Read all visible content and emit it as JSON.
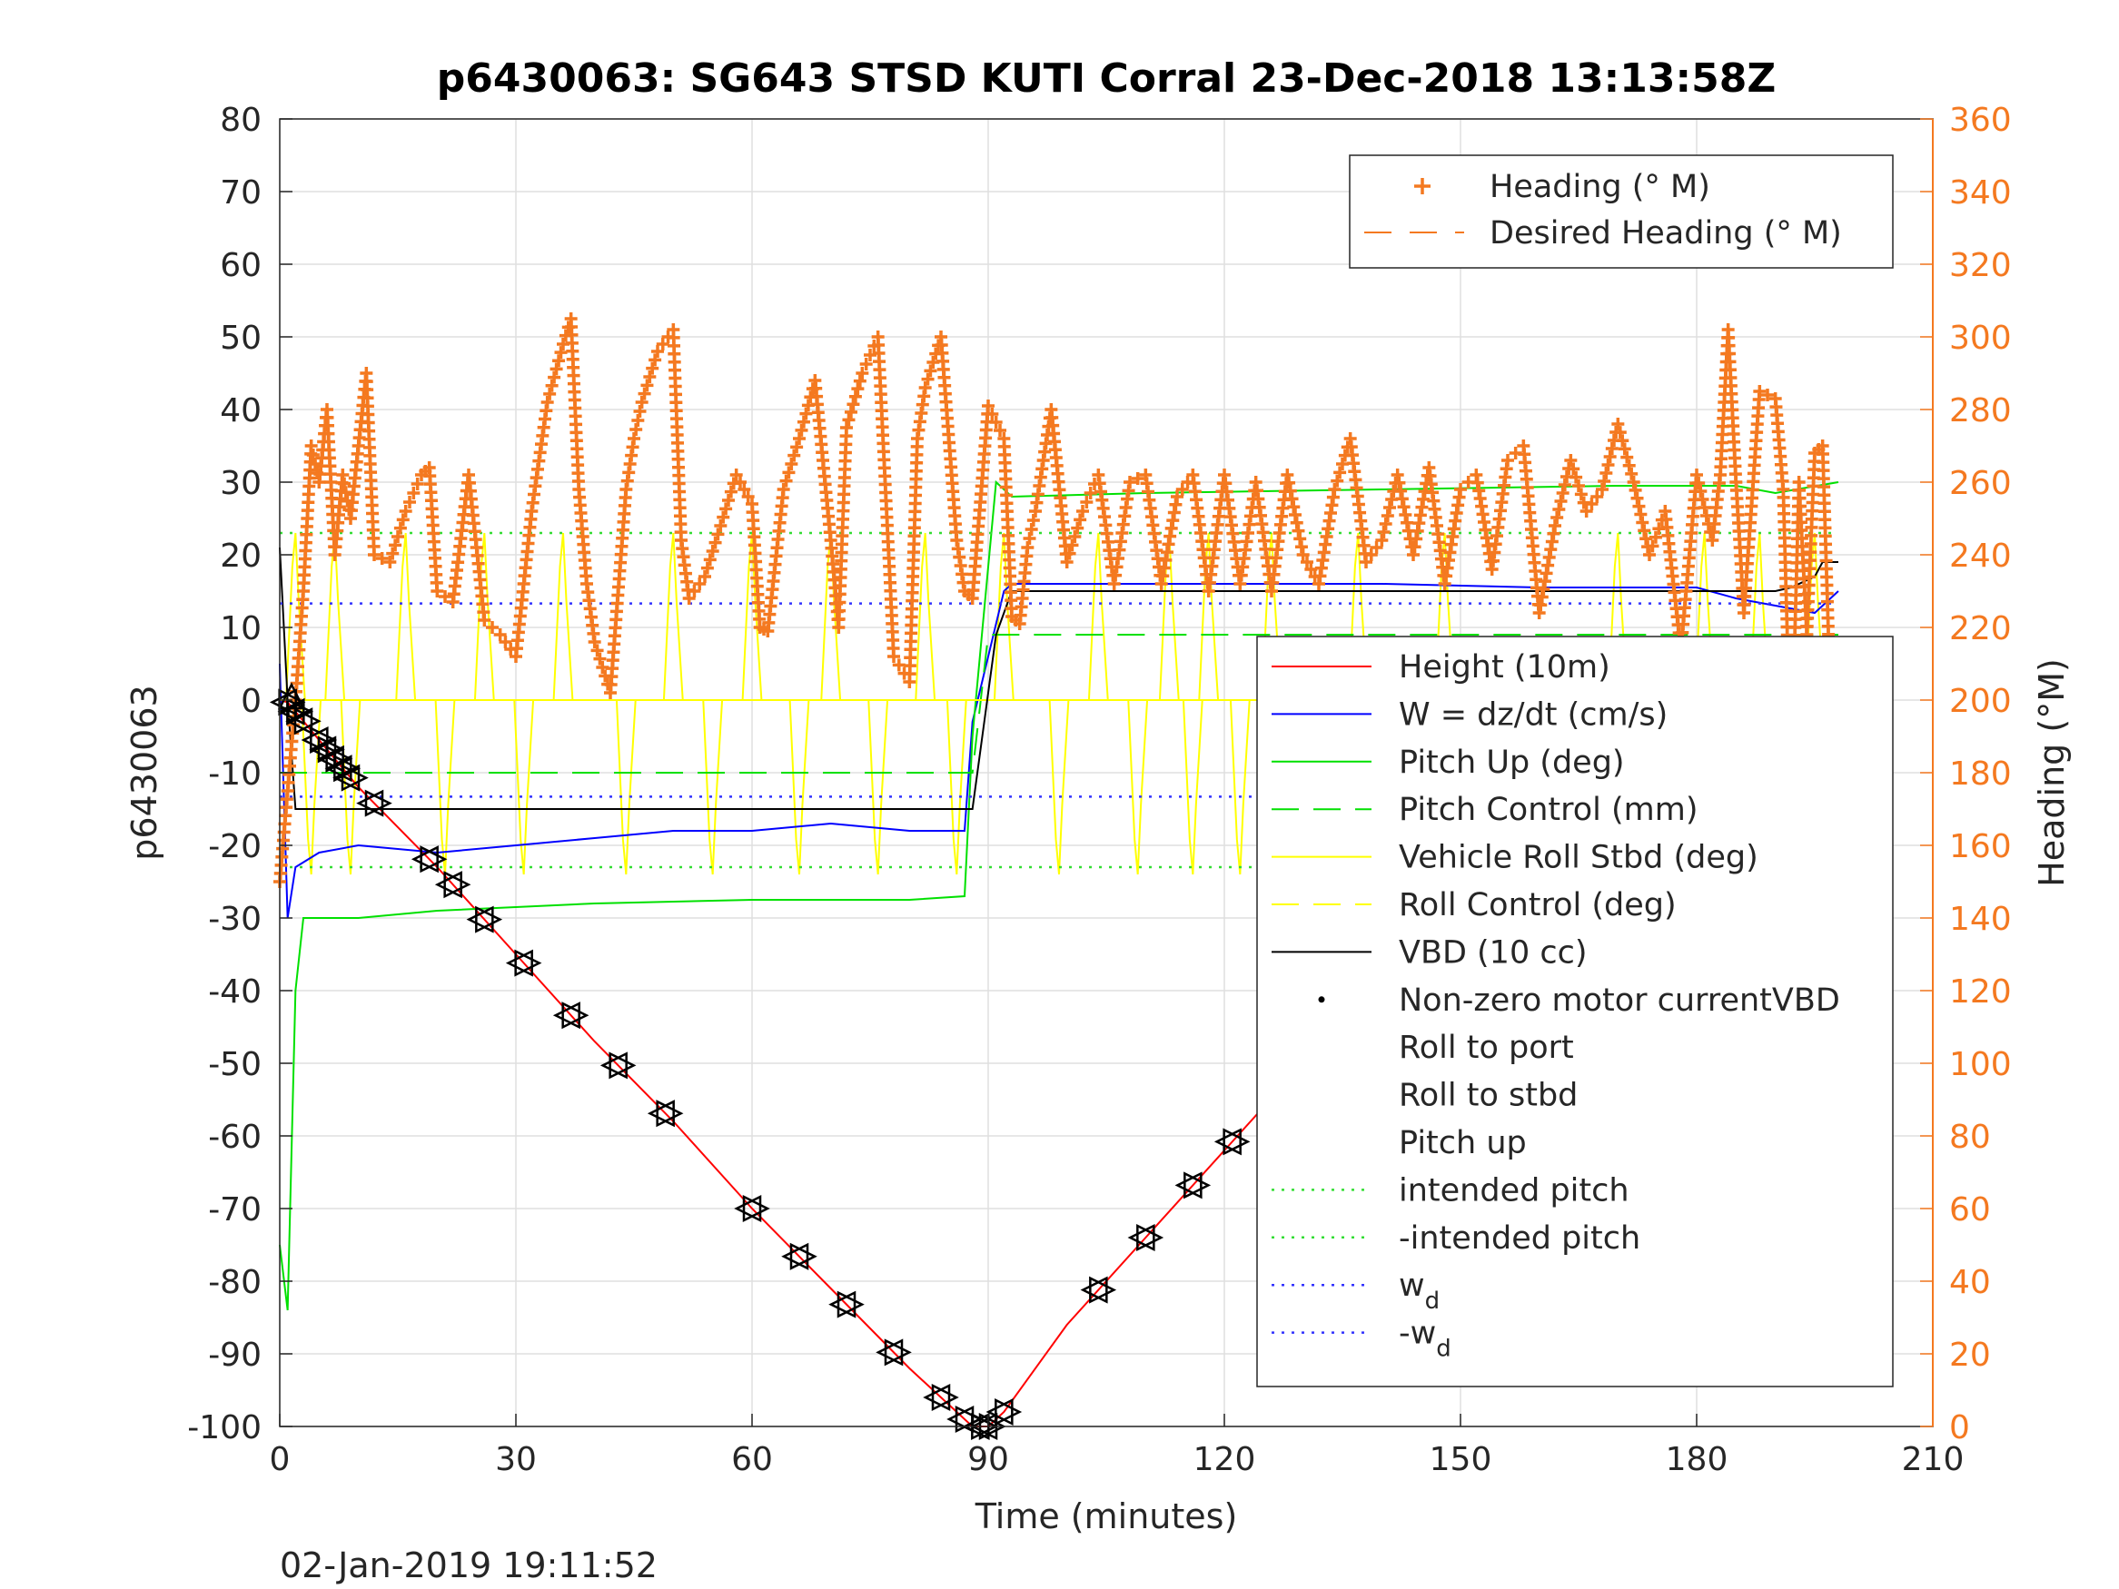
{
  "chart_data": {
    "type": "line",
    "title": "p6430063: SG643 STSD KUTI Corral 23-Dec-2018 13:13:58Z",
    "xlabel": "Time (minutes)",
    "ylabel": "p6430063",
    "ylabel_right": "Heading (°M)",
    "xlim": [
      0,
      210
    ],
    "ylim": [
      -100,
      80
    ],
    "ylim_right": [
      0,
      360
    ],
    "xticks": [
      "0",
      "30",
      "60",
      "90",
      "120",
      "150",
      "180",
      "210"
    ],
    "yticks": [
      "80",
      "70",
      "60",
      "50",
      "40",
      "30",
      "20",
      "10",
      "0",
      "-10",
      "-20",
      "-30",
      "-40",
      "-50",
      "-60",
      "-70",
      "-80",
      "-90",
      "-100"
    ],
    "yticks_right": [
      "360",
      "340",
      "320",
      "300",
      "280",
      "260",
      "240",
      "220",
      "200",
      "180",
      "160",
      "140",
      "120",
      "100",
      "80",
      "60",
      "40",
      "20",
      "0"
    ],
    "grid": true,
    "timestamp": "02-Jan-2019 19:11:52",
    "colors": {
      "height": "#ff0000",
      "w": "#0000ff",
      "pitch": "#00e000",
      "roll": "#ffff00",
      "vbd": "#000000",
      "heading": "#f47920",
      "wd": "#3333ff",
      "intended": "#33dd33"
    },
    "legend_right_axis": {
      "placement": "top-right",
      "entries": [
        "Heading (° M)",
        "Desired Heading (° M)"
      ]
    },
    "legend_left_axis": {
      "placement": "lower-right",
      "entries": [
        "Height (10m)",
        "W = dz/dt (cm/s)",
        "Pitch Up (deg)",
        "Pitch Control (mm)",
        "Vehicle Roll Stbd (deg)",
        "Roll Control (deg)",
        "VBD (10 cc)",
        "Non-zero motor currentVBD",
        "Roll to port",
        "Roll to stbd",
        "Pitch up",
        "intended pitch",
        "-intended pitch",
        "w",
        "-w"
      ],
      "subscript": "d"
    },
    "series": [
      {
        "name": "Height (10m)",
        "x": [
          0,
          1,
          10,
          20,
          30,
          40,
          50,
          60,
          70,
          80,
          88,
          90,
          92,
          100,
          110,
          120,
          130,
          140,
          150,
          160,
          170,
          180,
          190,
          198
        ],
        "y": [
          0,
          -0.3,
          -12,
          -23,
          -35,
          -47,
          -58,
          -70,
          -81,
          -92,
          -100,
          -100,
          -98,
          -86,
          -74,
          -62,
          -50,
          -38,
          -26,
          -14,
          -6,
          -17,
          -8,
          -1
        ]
      },
      {
        "name": "W = dz/dt (cm/s)",
        "x": [
          0,
          1,
          2,
          5,
          10,
          20,
          30,
          40,
          50,
          60,
          70,
          80,
          87,
          88,
          92,
          93,
          100,
          120,
          140,
          160,
          180,
          185,
          190,
          195,
          197,
          198
        ],
        "y": [
          5,
          -30,
          -23,
          -21,
          -20,
          -21,
          -20,
          -19,
          -18,
          -18,
          -17,
          -18,
          -18,
          -3,
          15,
          16,
          16,
          16,
          16,
          15.5,
          15.5,
          14,
          13,
          12,
          14,
          15
        ]
      },
      {
        "name": "Pitch Up (deg)",
        "x": [
          0,
          1,
          2,
          3,
          5,
          10,
          20,
          40,
          60,
          80,
          87,
          88,
          91,
          93,
          110,
          140,
          170,
          185,
          190,
          198
        ],
        "y": [
          -75,
          -84,
          -40,
          -30,
          -30,
          -30,
          -29,
          -28,
          -27.5,
          -27.5,
          -27,
          -5,
          30,
          28,
          28.5,
          29,
          29.5,
          29.5,
          28.5,
          30
        ]
      },
      {
        "name": "Pitch Control (mm)",
        "x": [
          0,
          88,
          90,
          198
        ],
        "y": [
          -10,
          -10,
          9,
          9
        ]
      },
      {
        "name": "Vehicle Roll Stbd (deg)",
        "x": [
          0,
          2,
          4,
          100,
          200
        ],
        "y": [
          0,
          0,
          0,
          0,
          0
        ]
      },
      {
        "name": "Roll Control (deg)",
        "x": [
          0,
          198
        ],
        "y": [
          0,
          0
        ]
      },
      {
        "name": "VBD (10 cc)",
        "x": [
          0,
          1,
          2,
          87,
          88,
          91,
          93,
          190,
          192,
          195,
          196,
          198
        ],
        "y": [
          21,
          0,
          -15,
          -15,
          -15,
          9,
          15,
          15,
          15.5,
          17,
          19,
          19
        ]
      },
      {
        "name": "intended pitch",
        "x": [
          0,
          198
        ],
        "y": [
          23,
          23
        ]
      },
      {
        "name": "-intended pitch",
        "x": [
          0,
          198
        ],
        "y": [
          -23,
          -23
        ]
      },
      {
        "name": "w",
        "subscript": "d",
        "x": [
          0,
          198
        ],
        "y": [
          13.3,
          13.3
        ]
      },
      {
        "name": "-w",
        "subscript": "d",
        "x": [
          0,
          198
        ],
        "y": [
          -13.3,
          -13.3
        ]
      },
      {
        "name": "Heading (° M)",
        "axis": "right",
        "x": [
          0,
          2,
          3,
          4,
          5,
          6,
          7,
          8,
          9,
          10,
          11,
          12,
          14,
          16,
          18,
          19,
          20,
          22,
          24,
          26,
          28,
          30,
          32,
          34,
          36,
          37,
          38,
          39,
          40,
          42,
          44,
          45,
          46,
          48,
          50,
          51,
          52,
          54,
          56,
          58,
          60,
          61,
          62,
          64,
          66,
          68,
          70,
          71,
          72,
          74,
          76,
          78,
          80,
          81,
          82,
          84,
          86,
          87,
          88,
          90,
          92,
          93,
          94,
          95,
          96,
          98,
          100,
          102,
          104,
          106,
          108,
          110,
          112,
          114,
          116,
          118,
          120,
          122,
          124,
          126,
          128,
          130,
          132,
          134,
          136,
          138,
          140,
          142,
          144,
          146,
          148,
          150,
          152,
          154,
          156,
          158,
          160,
          162,
          164,
          166,
          168,
          170,
          172,
          174,
          176,
          178,
          180,
          182,
          183,
          184,
          185,
          186,
          188,
          190,
          191,
          192,
          193,
          194,
          195,
          196,
          197,
          198
        ],
        "y": [
          150,
          200,
          230,
          270,
          260,
          280,
          240,
          262,
          250,
          270,
          290,
          240,
          238,
          252,
          262,
          264,
          230,
          227,
          262,
          222,
          218,
          212,
          252,
          282,
          298,
          305,
          258,
          232,
          216,
          202,
          258,
          272,
          282,
          296,
          302,
          244,
          228,
          234,
          248,
          262,
          254,
          220,
          219,
          258,
          272,
          288,
          244,
          220,
          275,
          290,
          300,
          212,
          205,
          272,
          286,
          300,
          244,
          230,
          228,
          281,
          272,
          223,
          221,
          242,
          252,
          280,
          238,
          252,
          262,
          232,
          260,
          262,
          232,
          256,
          262,
          230,
          262,
          232,
          260,
          230,
          262,
          240,
          232,
          258,
          272,
          238,
          244,
          262,
          240,
          264,
          232,
          258,
          262,
          236,
          266,
          270,
          224,
          248,
          266,
          252,
          258,
          276,
          260,
          240,
          252,
          214,
          262,
          244,
          262,
          302,
          260,
          224,
          285,
          283,
          258,
          180,
          260,
          218,
          268,
          270,
          200,
          210
        ]
      }
    ]
  }
}
